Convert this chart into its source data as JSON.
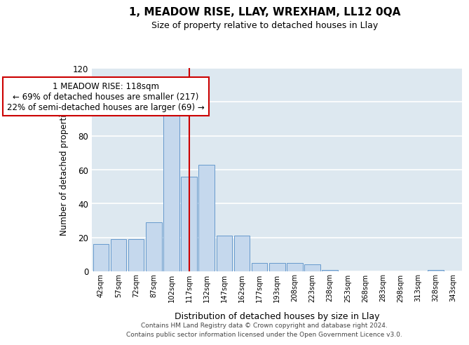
{
  "title": "1, MEADOW RISE, LLAY, WREXHAM, LL12 0QA",
  "subtitle": "Size of property relative to detached houses in Llay",
  "xlabel": "Distribution of detached houses by size in Llay",
  "ylabel": "Number of detached properties",
  "categories": [
    "42sqm",
    "57sqm",
    "72sqm",
    "87sqm",
    "102sqm",
    "117sqm",
    "132sqm",
    "147sqm",
    "162sqm",
    "177sqm",
    "193sqm",
    "208sqm",
    "223sqm",
    "238sqm",
    "253sqm",
    "268sqm",
    "283sqm",
    "298sqm",
    "313sqm",
    "328sqm",
    "343sqm"
  ],
  "values": [
    16,
    19,
    19,
    29,
    99,
    56,
    63,
    21,
    21,
    5,
    5,
    5,
    4,
    1,
    0,
    0,
    0,
    0,
    0,
    1,
    0
  ],
  "bar_color": "#c5d8ed",
  "bar_edgecolor": "#6699cc",
  "background_color": "#dde8f0",
  "grid_color": "#ffffff",
  "vline_x": 5.0,
  "vline_color": "#cc0000",
  "annotation_text": "1 MEADOW RISE: 118sqm\n← 69% of detached houses are smaller (217)\n22% of semi-detached houses are larger (69) →",
  "annotation_box_color": "#cc0000",
  "ylim": [
    0,
    120
  ],
  "yticks": [
    0,
    20,
    40,
    60,
    80,
    100,
    120
  ],
  "footer_line1": "Contains HM Land Registry data © Crown copyright and database right 2024.",
  "footer_line2": "Contains public sector information licensed under the Open Government Licence v3.0."
}
